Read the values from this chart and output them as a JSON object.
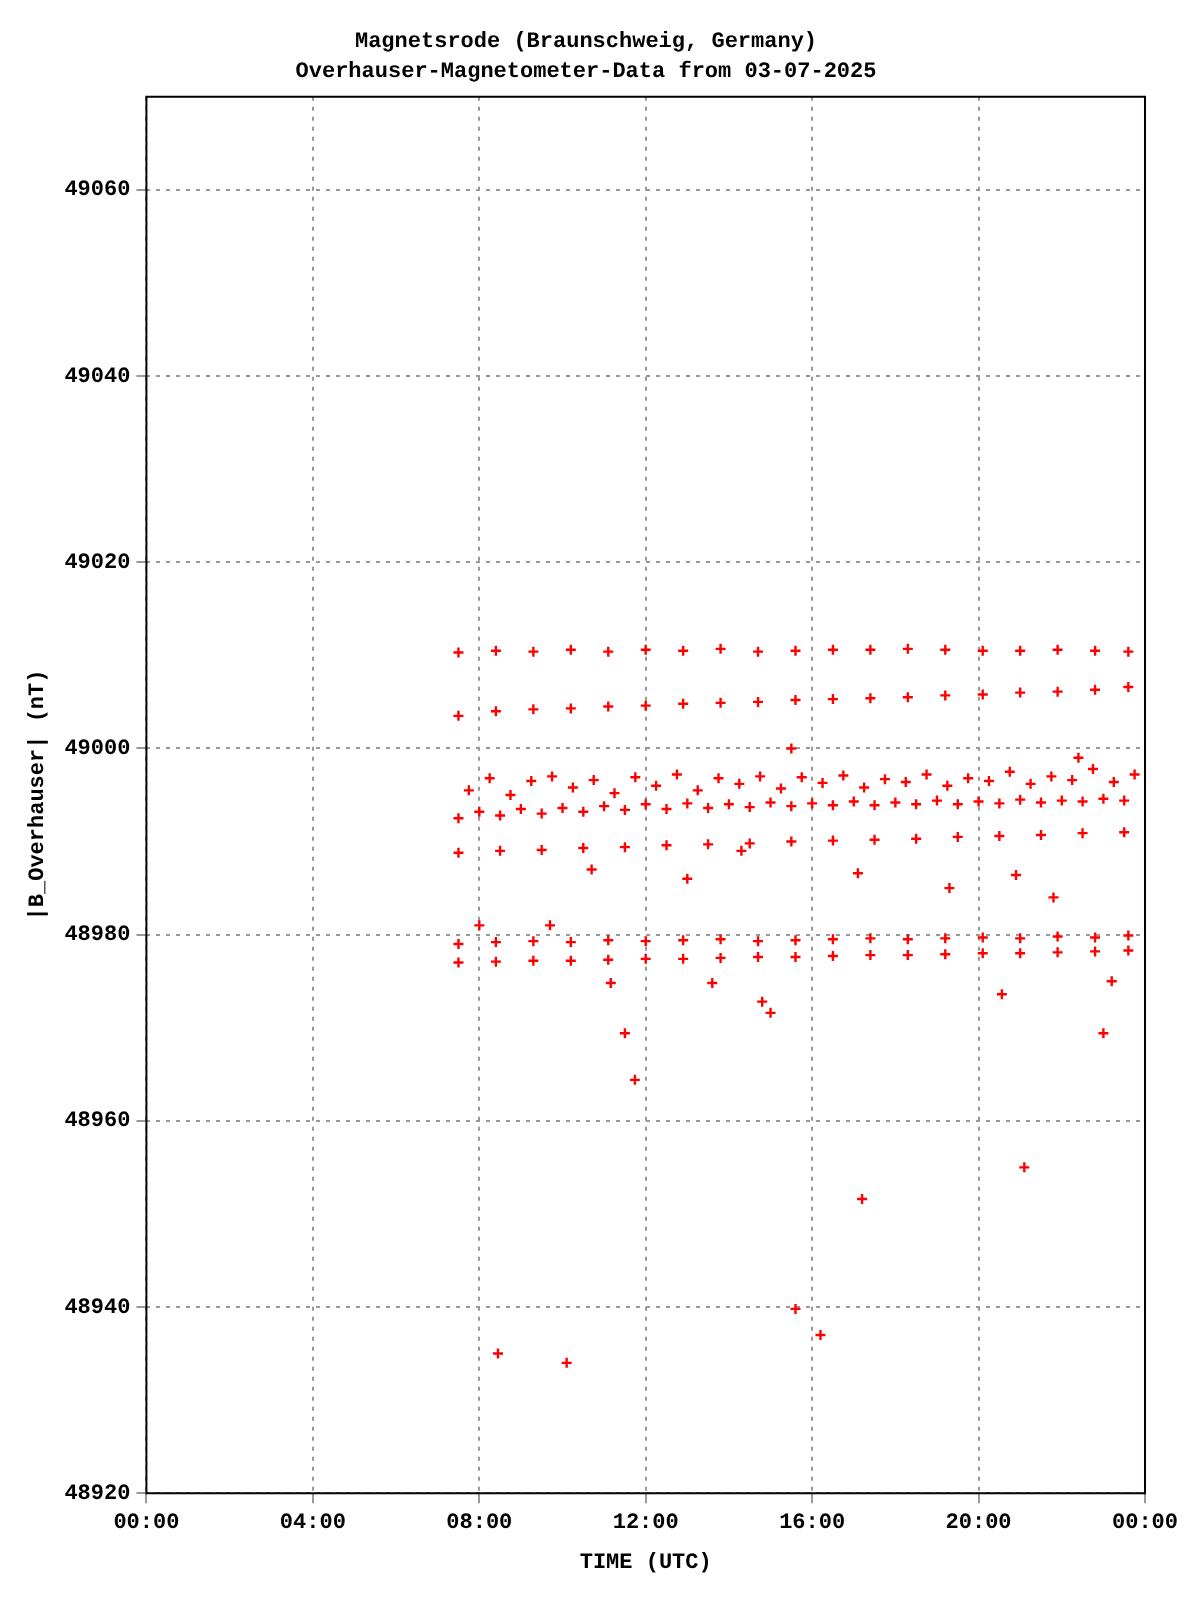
{
  "chart_data": {
    "type": "scatter",
    "title": "Magnetsrode (Braunschweig, Germany)",
    "subtitle": "Overhauser-Magnetometer-Data from 03-07-2025",
    "xlabel": "TIME (UTC)",
    "ylabel": "|B_Overhauser| (nT)",
    "color": "#ff0000",
    "marker": "cross",
    "grid": true,
    "xlim": [
      0,
      24
    ],
    "xticks": [
      {
        "value": 0,
        "label": "00:00"
      },
      {
        "value": 4,
        "label": "04:00"
      },
      {
        "value": 8,
        "label": "08:00"
      },
      {
        "value": 12,
        "label": "12:00"
      },
      {
        "value": 16,
        "label": "16:00"
      },
      {
        "value": 20,
        "label": "20:00"
      },
      {
        "value": 24,
        "label": "00:00"
      }
    ],
    "ylim": [
      48920,
      49070
    ],
    "yticks": [
      48920,
      48940,
      48960,
      48980,
      49000,
      49020,
      49040,
      49060
    ],
    "x": [
      7.5,
      8.4,
      9.3,
      10.2,
      11.1,
      12,
      12.9,
      13.8,
      14.7,
      15.6,
      16.5,
      17.4,
      18.3,
      19.2,
      20.1,
      21,
      21.9,
      22.8,
      23.6,
      7.5,
      8.4,
      9.3,
      10.2,
      11.1,
      12,
      12.9,
      13.8,
      14.7,
      15.6,
      16.5,
      17.4,
      18.3,
      19.2,
      20.1,
      21,
      21.9,
      22.8,
      23.6,
      7.5,
      8.4,
      9.3,
      10.2,
      11.1,
      12,
      12.9,
      13.8,
      14.7,
      15.6,
      16.5,
      17.4,
      18.3,
      19.2,
      20.1,
      21,
      21.9,
      22.8,
      23.6,
      7.5,
      8.4,
      9.3,
      10.2,
      11.1,
      12,
      12.9,
      13.8,
      14.7,
      15.6,
      16.5,
      17.4,
      18.3,
      19.2,
      20.1,
      21,
      21.9,
      22.8,
      23.6,
      7.5,
      8.5,
      9.5,
      10.5,
      11.5,
      12.5,
      13.5,
      14.5,
      15.5,
      16.5,
      17.5,
      18.5,
      19.5,
      20.5,
      21.5,
      22.5,
      23.5,
      7.5,
      8,
      8.5,
      9,
      9.5,
      10,
      10.5,
      11,
      11.5,
      12,
      12.5,
      13,
      13.5,
      14,
      14.5,
      15,
      15.5,
      16,
      16.5,
      17,
      17.5,
      18,
      18.5,
      19,
      19.5,
      20,
      20.5,
      21,
      21.5,
      22,
      22.5,
      23,
      23.5,
      7.75,
      8.25,
      8.75,
      9.25,
      9.75,
      10.25,
      10.75,
      11.25,
      11.75,
      12.25,
      12.75,
      13.25,
      13.75,
      14.25,
      14.75,
      15.25,
      15.75,
      16.25,
      16.75,
      17.25,
      17.75,
      18.25,
      18.75,
      19.25,
      19.75,
      20.25,
      20.75,
      21.25,
      21.75,
      22.25,
      22.75,
      23.25,
      23.75,
      11.16,
      11.5,
      11.74,
      13.6,
      14.8,
      15.0,
      20.56,
      23.0,
      23.2,
      21.1,
      17.2,
      15.6,
      16.2,
      8.45,
      10.1,
      10.7,
      8.0,
      9.7,
      14.3,
      13.0,
      15.5,
      17.1,
      19.3,
      20.9,
      21.8,
      22.4
    ],
    "values": [
      49010.3,
      49010.5,
      49010.4,
      49010.6,
      49010.4,
      49010.6,
      49010.5,
      49010.7,
      49010.4,
      49010.5,
      49010.6,
      49010.6,
      49010.7,
      49010.6,
      49010.5,
      49010.5,
      49010.6,
      49010.5,
      49010.4,
      49003.5,
      49004.0,
      49004.2,
      49004.3,
      49004.5,
      49004.6,
      49004.8,
      49004.9,
      49005.0,
      49005.2,
      49005.3,
      49005.4,
      49005.5,
      49005.7,
      49005.8,
      49006.0,
      49006.1,
      49006.3,
      49006.6,
      48979.0,
      48979.2,
      48979.3,
      48979.2,
      48979.4,
      48979.3,
      48979.4,
      48979.5,
      48979.3,
      48979.4,
      48979.5,
      48979.6,
      48979.5,
      48979.6,
      48979.7,
      48979.6,
      48979.8,
      48979.7,
      48979.9,
      48977.0,
      48977.1,
      48977.2,
      48977.2,
      48977.3,
      48977.4,
      48977.4,
      48977.5,
      48977.6,
      48977.6,
      48977.7,
      48977.8,
      48977.8,
      48977.9,
      48978.0,
      48978.0,
      48978.1,
      48978.2,
      48978.3,
      48988.8,
      48989.0,
      48989.1,
      48989.3,
      48989.4,
      48989.6,
      48989.7,
      48989.8,
      48990.0,
      48990.1,
      48990.2,
      48990.3,
      48990.5,
      48990.6,
      48990.7,
      48990.9,
      48991.0,
      48992.5,
      48993.2,
      48992.8,
      48993.5,
      48993.0,
      48993.6,
      48993.2,
      48993.8,
      48993.4,
      48994.0,
      48993.5,
      48994.1,
      48993.6,
      48994.0,
      48993.7,
      48994.2,
      48993.8,
      48994.1,
      48993.9,
      48994.3,
      48993.9,
      48994.2,
      48994.0,
      48994.4,
      48994.0,
      48994.3,
      48994.1,
      48994.5,
      48994.2,
      48994.4,
      48994.3,
      48994.6,
      48994.4,
      48995.5,
      48996.8,
      48995.0,
      48996.5,
      48997.0,
      48995.8,
      48996.6,
      48995.2,
      48996.9,
      48996.0,
      48997.2,
      48995.5,
      48996.8,
      48996.2,
      48997.0,
      48995.7,
      48996.9,
      48996.3,
      48997.1,
      48995.8,
      48996.7,
      48996.4,
      48997.2,
      48996.0,
      48996.8,
      48996.5,
      48997.5,
      48996.2,
      48997.0,
      48996.6,
      48997.8,
      48996.4,
      48997.2,
      48974.8,
      48969.4,
      48964.4,
      48974.8,
      48972.8,
      48971.6,
      48973.6,
      48969.4,
      48975,
      48955,
      48951.6,
      48939.8,
      48937,
      48935,
      48934,
      48987,
      48981,
      48981,
      48989,
      48986,
      49000,
      48986.6,
      48985,
      48986.4,
      48984,
      48999
    ]
  }
}
